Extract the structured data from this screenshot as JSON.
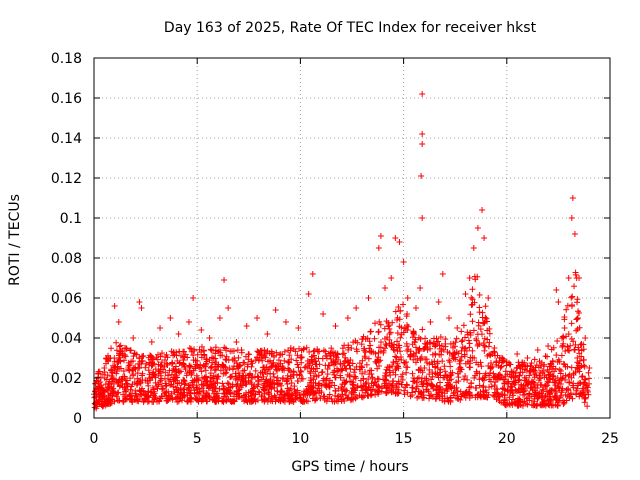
{
  "chart_data": {
    "type": "scatter",
    "title": "Day 163 of 2025, Rate Of TEC Index for receiver hkst",
    "xlabel": "GPS time / hours",
    "ylabel": "ROTI / TECUs",
    "xlim": [
      0,
      25
    ],
    "ylim": [
      0,
      0.18
    ],
    "xticks": [
      0,
      5,
      10,
      15,
      20,
      25
    ],
    "xtick_labels": [
      "0",
      "5",
      "10",
      "15",
      "20",
      "25"
    ],
    "yticks": [
      0,
      0.02,
      0.04,
      0.06,
      0.08,
      0.1,
      0.12,
      0.14,
      0.16,
      0.18
    ],
    "ytick_labels": [
      "0",
      "0.02",
      "0.04",
      "0.06",
      "0.08",
      "0.1",
      "0.12",
      "0.14",
      "0.16",
      "0.18"
    ],
    "grid": true,
    "marker": "+",
    "color": "#ff0000",
    "series": [
      {
        "name": "ROTI",
        "points": [
          [
            0.1,
            0.012
          ],
          [
            0.3,
            0.018
          ],
          [
            0.5,
            0.025
          ],
          [
            0.8,
            0.03
          ],
          [
            1.0,
            0.056
          ],
          [
            1.2,
            0.048
          ],
          [
            1.5,
            0.035
          ],
          [
            1.9,
            0.04
          ],
          [
            2.2,
            0.058
          ],
          [
            2.3,
            0.055
          ],
          [
            2.8,
            0.038
          ],
          [
            3.2,
            0.045
          ],
          [
            3.7,
            0.05
          ],
          [
            4.1,
            0.042
          ],
          [
            4.6,
            0.048
          ],
          [
            4.8,
            0.06
          ],
          [
            5.2,
            0.044
          ],
          [
            5.6,
            0.04
          ],
          [
            6.1,
            0.05
          ],
          [
            6.3,
            0.069
          ],
          [
            6.5,
            0.055
          ],
          [
            6.9,
            0.038
          ],
          [
            7.4,
            0.046
          ],
          [
            7.9,
            0.05
          ],
          [
            8.4,
            0.042
          ],
          [
            8.8,
            0.054
          ],
          [
            9.3,
            0.048
          ],
          [
            9.9,
            0.045
          ],
          [
            10.4,
            0.062
          ],
          [
            10.6,
            0.072
          ],
          [
            11.1,
            0.052
          ],
          [
            11.7,
            0.046
          ],
          [
            12.3,
            0.05
          ],
          [
            12.7,
            0.055
          ],
          [
            13.3,
            0.06
          ],
          [
            13.8,
            0.085
          ],
          [
            13.9,
            0.091
          ],
          [
            14.1,
            0.065
          ],
          [
            14.4,
            0.07
          ],
          [
            14.6,
            0.09
          ],
          [
            14.8,
            0.088
          ],
          [
            15.0,
            0.078
          ],
          [
            15.2,
            0.06
          ],
          [
            15.6,
            0.055
          ],
          [
            15.8,
            0.065
          ],
          [
            15.9,
            0.1
          ],
          [
            15.85,
            0.121
          ],
          [
            15.9,
            0.137
          ],
          [
            15.9,
            0.142
          ],
          [
            15.9,
            0.162
          ],
          [
            16.3,
            0.048
          ],
          [
            16.7,
            0.058
          ],
          [
            16.9,
            0.072
          ],
          [
            17.2,
            0.05
          ],
          [
            17.6,
            0.045
          ],
          [
            18.0,
            0.062
          ],
          [
            18.2,
            0.07
          ],
          [
            18.4,
            0.085
          ],
          [
            18.6,
            0.095
          ],
          [
            18.8,
            0.104
          ],
          [
            18.9,
            0.09
          ],
          [
            19.1,
            0.06
          ],
          [
            19.4,
            0.035
          ],
          [
            20.0,
            0.028
          ],
          [
            20.5,
            0.032
          ],
          [
            21.0,
            0.03
          ],
          [
            21.5,
            0.034
          ],
          [
            22.0,
            0.036
          ],
          [
            22.4,
            0.064
          ],
          [
            22.5,
            0.058
          ],
          [
            22.8,
            0.045
          ],
          [
            23.0,
            0.07
          ],
          [
            23.15,
            0.1
          ],
          [
            23.2,
            0.11
          ],
          [
            23.3,
            0.092
          ],
          [
            23.5,
            0.07
          ],
          [
            23.8,
            0.04
          ],
          [
            24.0,
            0.025
          ]
        ]
      }
    ],
    "envelope": {
      "description": "dense ROTI band per hour, data units",
      "hours": [
        0,
        1,
        2,
        3,
        4,
        5,
        6,
        7,
        8,
        9,
        10,
        11,
        12,
        13,
        13.8,
        14.5,
        15,
        15.5,
        16,
        16.5,
        17,
        17.5,
        18,
        18.5,
        19,
        19.3,
        20,
        21,
        22,
        22.5,
        23,
        23.3,
        23.6,
        24
      ],
      "low": [
        0.004,
        0.008,
        0.008,
        0.008,
        0.008,
        0.008,
        0.008,
        0.008,
        0.008,
        0.008,
        0.008,
        0.008,
        0.008,
        0.01,
        0.012,
        0.012,
        0.012,
        0.01,
        0.01,
        0.008,
        0.008,
        0.008,
        0.01,
        0.01,
        0.01,
        0.01,
        0.006,
        0.006,
        0.006,
        0.006,
        0.008,
        0.01,
        0.01,
        0.004
      ],
      "high": [
        0.02,
        0.038,
        0.034,
        0.032,
        0.034,
        0.036,
        0.036,
        0.034,
        0.034,
        0.034,
        0.036,
        0.036,
        0.036,
        0.04,
        0.05,
        0.052,
        0.06,
        0.045,
        0.045,
        0.04,
        0.042,
        0.038,
        0.05,
        0.075,
        0.06,
        0.035,
        0.028,
        0.028,
        0.032,
        0.04,
        0.06,
        0.08,
        0.05,
        0.02
      ]
    }
  }
}
